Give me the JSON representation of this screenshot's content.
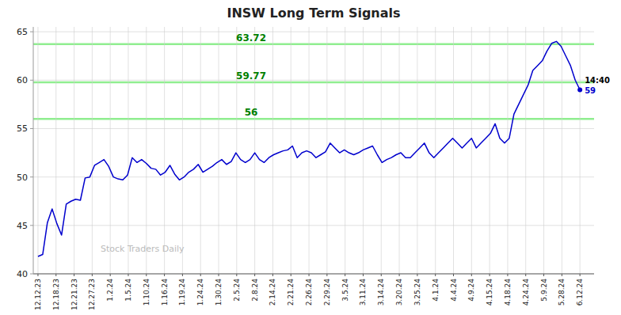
{
  "chart_data": {
    "type": "line",
    "title": "INSW Long Term Signals",
    "watermark": "Stock Traders Daily",
    "color": "#0000CD",
    "last_dot_color": "#0000CD",
    "last_time": "14:40",
    "last_price": 59,
    "grid": true,
    "hlines": [
      {
        "value": 63.72,
        "label": "63.72",
        "color": "#90EE90"
      },
      {
        "value": 59.77,
        "label": "59.77",
        "color": "#90EE90"
      },
      {
        "value": 56.0,
        "label": "56",
        "color": "#90EE90"
      }
    ],
    "ylim": [
      40,
      65.5
    ],
    "yticks": [
      40,
      45,
      50,
      55,
      60,
      65
    ],
    "xlim": [
      -1,
      118
    ],
    "xticks": [
      {
        "value": 0,
        "label": "12.12.23"
      },
      {
        "value": 3.8333333333333335,
        "label": "12.18.23"
      },
      {
        "value": 7.666666666666667,
        "label": "12.21.23"
      },
      {
        "value": 11.5,
        "label": "12.27.23"
      },
      {
        "value": 15.333333333333334,
        "label": "1.2.24"
      },
      {
        "value": 19.166666666666668,
        "label": "1.5.24"
      },
      {
        "value": 23,
        "label": "1.10.24"
      },
      {
        "value": 26.833333333333336,
        "label": "1.16.24"
      },
      {
        "value": 30.666666666666668,
        "label": "1.19.24"
      },
      {
        "value": 34.5,
        "label": "1.24.24"
      },
      {
        "value": 38.333333333333336,
        "label": "1.30.24"
      },
      {
        "value": 42.16666666666667,
        "label": "2.5.24"
      },
      {
        "value": 46,
        "label": "2.8.24"
      },
      {
        "value": 49.833333333333336,
        "label": "2.14.24"
      },
      {
        "value": 53.66666666666667,
        "label": "2.21.24"
      },
      {
        "value": 57.5,
        "label": "2.26.24"
      },
      {
        "value": 61.333333333333336,
        "label": "2.29.24"
      },
      {
        "value": 65.16666666666667,
        "label": "3.5.24"
      },
      {
        "value": 69,
        "label": "3.11.24"
      },
      {
        "value": 72.83333333333334,
        "label": "3.14.24"
      },
      {
        "value": 76.66666666666667,
        "label": "3.20.24"
      },
      {
        "value": 80.5,
        "label": "3.25.24"
      },
      {
        "value": 84.33333333333334,
        "label": "4.1.24"
      },
      {
        "value": 88.16666666666667,
        "label": "4.4.24"
      },
      {
        "value": 92,
        "label": "4.9.24"
      },
      {
        "value": 95.83333333333334,
        "label": "4.15.24"
      },
      {
        "value": 99.66666666666667,
        "label": "4.18.24"
      },
      {
        "value": 103.5,
        "label": "4.24.24"
      },
      {
        "value": 107.33333333333334,
        "label": "5.9.24"
      },
      {
        "value": 111.16666666666667,
        "label": "5.28.24"
      },
      {
        "value": 115,
        "label": "6.12.24"
      }
    ],
    "values": [
      41.8,
      42.0,
      45.3,
      46.7,
      45.2,
      44.0,
      47.2,
      47.5,
      47.7,
      47.6,
      49.9,
      50.0,
      51.2,
      51.5,
      51.8,
      51.1,
      50.0,
      49.8,
      49.7,
      50.2,
      52.0,
      51.5,
      51.8,
      51.4,
      50.9,
      50.8,
      50.2,
      50.5,
      51.2,
      50.3,
      49.7,
      50.0,
      50.5,
      50.8,
      51.3,
      50.5,
      50.8,
      51.1,
      51.5,
      51.8,
      51.3,
      51.6,
      52.5,
      51.8,
      51.5,
      51.8,
      52.5,
      51.8,
      51.5,
      52.0,
      52.3,
      52.5,
      52.7,
      52.8,
      53.2,
      52.0,
      52.5,
      52.7,
      52.5,
      52.0,
      52.3,
      52.6,
      53.5,
      53.0,
      52.5,
      52.8,
      52.5,
      52.3,
      52.5,
      52.8,
      53.0,
      53.2,
      52.3,
      51.5,
      51.8,
      52.0,
      52.3,
      52.5,
      52.0,
      52.0,
      52.5,
      53.0,
      53.5,
      52.5,
      52.0,
      52.5,
      53.0,
      53.5,
      54.0,
      53.5,
      53.0,
      53.5,
      54.0,
      53.0,
      53.5,
      54.0,
      54.5,
      55.5,
      54.0,
      53.5,
      54.0,
      56.5,
      57.5,
      58.5,
      59.5,
      61.0,
      61.5,
      62.0,
      63.0,
      63.8,
      64.0,
      63.5,
      62.5,
      61.5,
      60.0,
      59.0
    ]
  }
}
